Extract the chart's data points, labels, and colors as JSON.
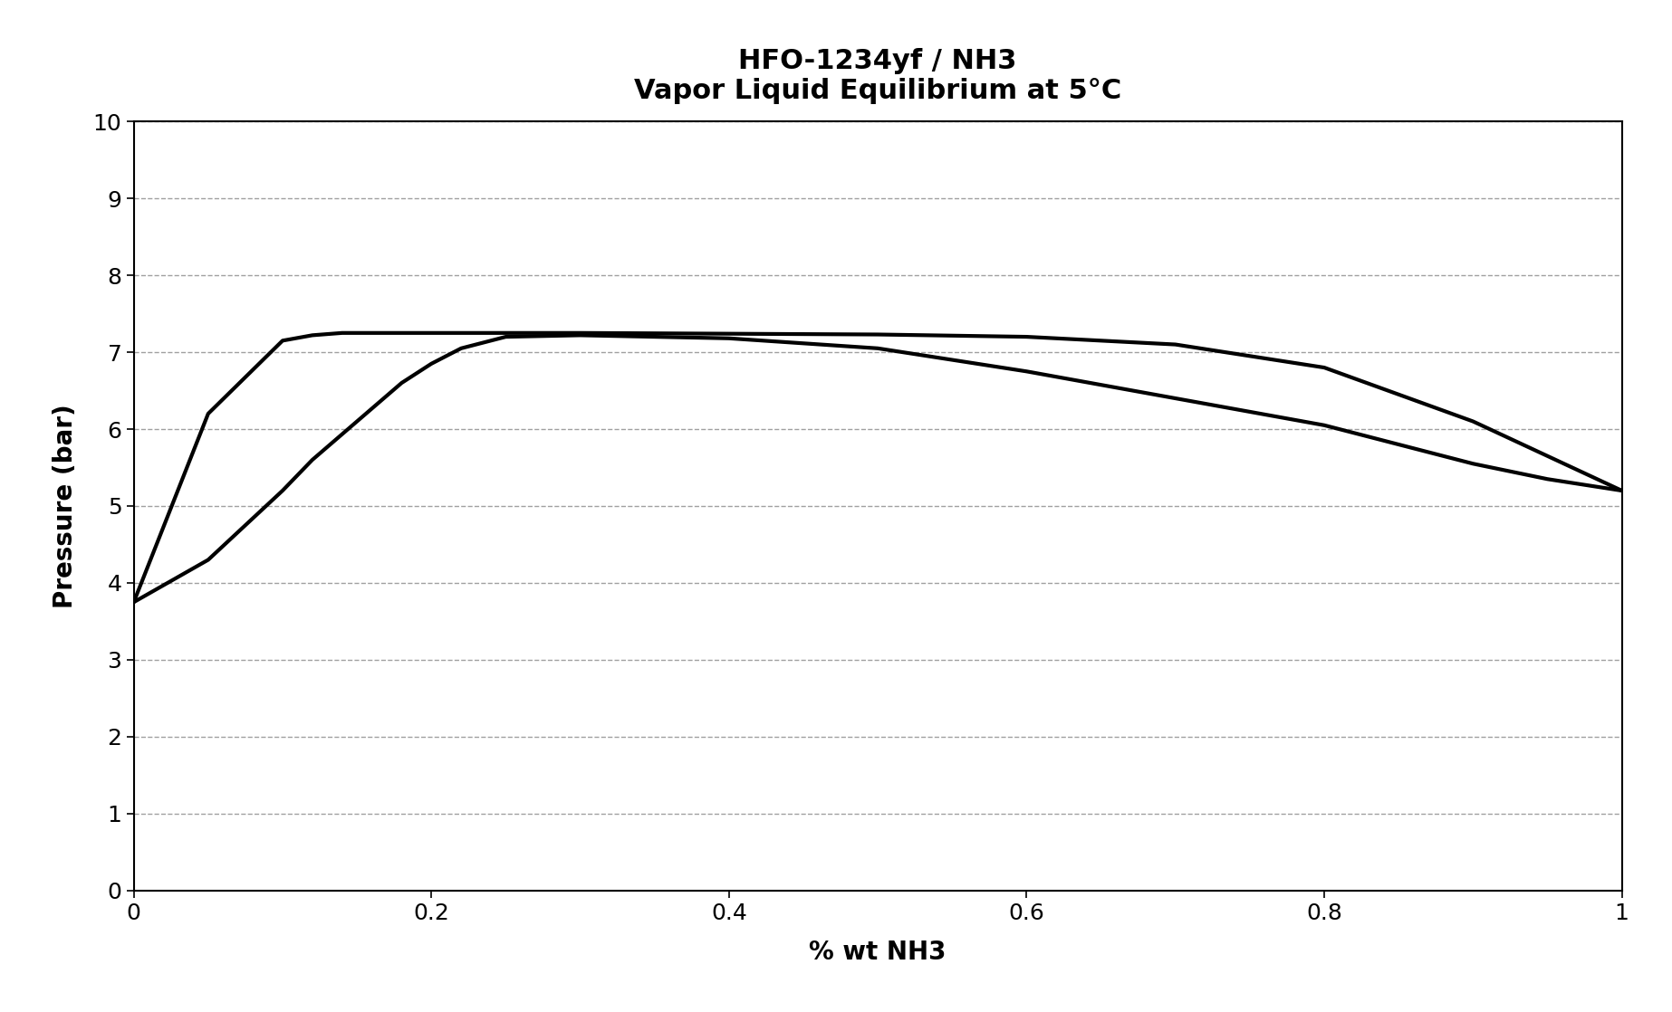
{
  "title_line1": "HFO-1234yf / NH3",
  "title_line2": "Vapor Liquid Equilibrium at 5°C",
  "xlabel": "% wt NH3",
  "ylabel": "Pressure (bar)",
  "xlim": [
    0,
    1
  ],
  "ylim": [
    0,
    10
  ],
  "xticks": [
    0,
    0.2,
    0.4,
    0.6,
    0.8,
    1.0
  ],
  "yticks": [
    0,
    1,
    2,
    3,
    4,
    5,
    6,
    7,
    8,
    9,
    10
  ],
  "background_color": "#ffffff",
  "line_color": "#000000",
  "line_width": 3.0,
  "grid_color": "#888888",
  "bubble_curve_x": [
    0.0,
    0.05,
    0.1,
    0.12,
    0.14,
    0.16,
    0.18,
    0.2,
    0.25,
    0.3,
    0.4,
    0.5,
    0.6,
    0.7,
    0.8,
    0.9,
    0.95,
    1.0
  ],
  "bubble_curve_y": [
    3.75,
    6.2,
    7.15,
    7.22,
    7.25,
    7.25,
    7.25,
    7.25,
    7.25,
    7.25,
    7.24,
    7.23,
    7.2,
    7.1,
    6.8,
    6.1,
    5.65,
    5.2
  ],
  "dew_curve_x": [
    0.0,
    0.05,
    0.1,
    0.12,
    0.15,
    0.18,
    0.2,
    0.22,
    0.25,
    0.3,
    0.4,
    0.5,
    0.6,
    0.7,
    0.8,
    0.9,
    0.95,
    1.0
  ],
  "dew_curve_y": [
    3.75,
    4.3,
    5.2,
    5.6,
    6.1,
    6.6,
    6.85,
    7.05,
    7.2,
    7.22,
    7.18,
    7.05,
    6.75,
    6.4,
    6.05,
    5.55,
    5.35,
    5.2
  ]
}
